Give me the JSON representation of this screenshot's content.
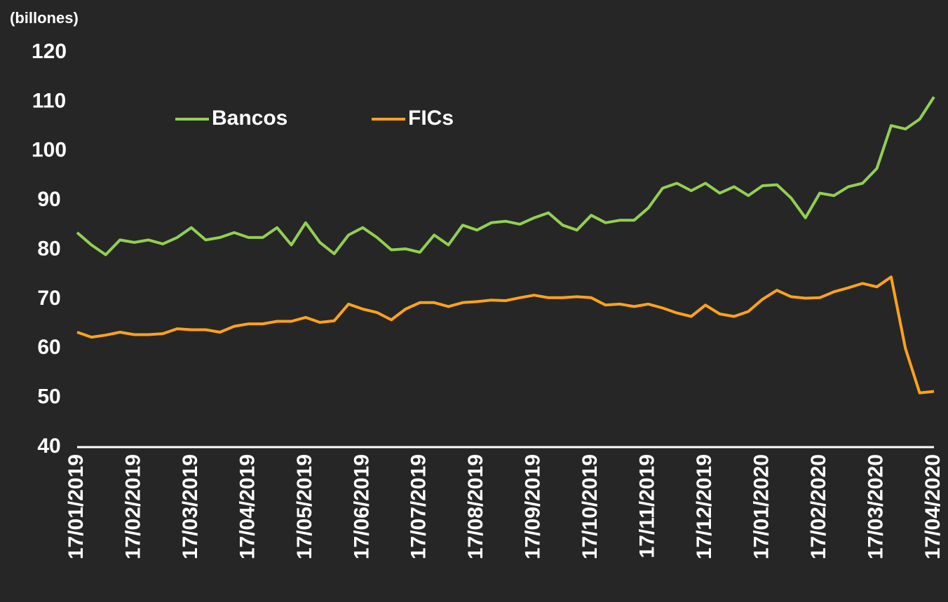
{
  "chart_data": {
    "type": "line",
    "y_label": "(billones)",
    "categories": [
      "17/01/2019",
      null,
      null,
      null,
      "17/02/2019",
      null,
      null,
      null,
      "17/03/2019",
      null,
      null,
      null,
      "17/04/2019",
      null,
      null,
      null,
      "17/05/2019",
      null,
      null,
      null,
      "17/06/2019",
      null,
      null,
      null,
      "17/07/2019",
      null,
      null,
      null,
      "17/08/2019",
      null,
      null,
      null,
      "17/09/2019",
      null,
      null,
      null,
      "17/10/2019",
      null,
      null,
      null,
      "17/11/2019",
      null,
      null,
      null,
      "17/12/2019",
      null,
      null,
      null,
      "17/01/2020",
      null,
      null,
      null,
      "17/02/2020",
      null,
      null,
      null,
      "17/03/2020",
      null,
      null,
      null,
      "17/04/2020"
    ],
    "series": [
      {
        "name": "Bancos",
        "color": "#92d050",
        "values": [
          83.5,
          81,
          79,
          82,
          81.5,
          82,
          81.2,
          82.5,
          84.5,
          82,
          82.5,
          83.5,
          82.5,
          82.5,
          84.5,
          81,
          85.5,
          81.5,
          79.2,
          83,
          84.5,
          82.5,
          80,
          80.2,
          79.5,
          83,
          81,
          85,
          84,
          85.5,
          85.8,
          85.2,
          86.5,
          87.5,
          85,
          84,
          87,
          85.5,
          86,
          86,
          88.5,
          92.5,
          93.5,
          92,
          93.5,
          91.5,
          92.8,
          91,
          93,
          93.2,
          90.5,
          86.5,
          91.5,
          91,
          92.8,
          93.5,
          96.5,
          105.2,
          104.5,
          106.5,
          111
        ]
      },
      {
        "name": "FICs",
        "color": "#ffa31a",
        "values": [
          63.3,
          62.3,
          62.7,
          63.3,
          62.8,
          62.8,
          63,
          64,
          63.8,
          63.8,
          63.3,
          64.5,
          65,
          65,
          65.5,
          65.5,
          66.3,
          65.3,
          65.6,
          69,
          68,
          67.3,
          65.8,
          68,
          69.3,
          69.3,
          68.5,
          69.3,
          69.5,
          69.8,
          69.7,
          70.3,
          70.8,
          70.3,
          70.3,
          70.5,
          70.3,
          68.8,
          69,
          68.5,
          69,
          68.2,
          67.2,
          66.5,
          68.8,
          67,
          66.5,
          67.5,
          70,
          71.8,
          70.5,
          70.2,
          70.3,
          71.5,
          72.3,
          73.2,
          72.5,
          74.5,
          60,
          51,
          51.3
        ]
      }
    ],
    "ylim": [
      40,
      120
    ],
    "yticks": [
      40,
      50,
      60,
      70,
      80,
      90,
      100,
      110,
      120
    ],
    "grid": false,
    "legend": "top"
  }
}
